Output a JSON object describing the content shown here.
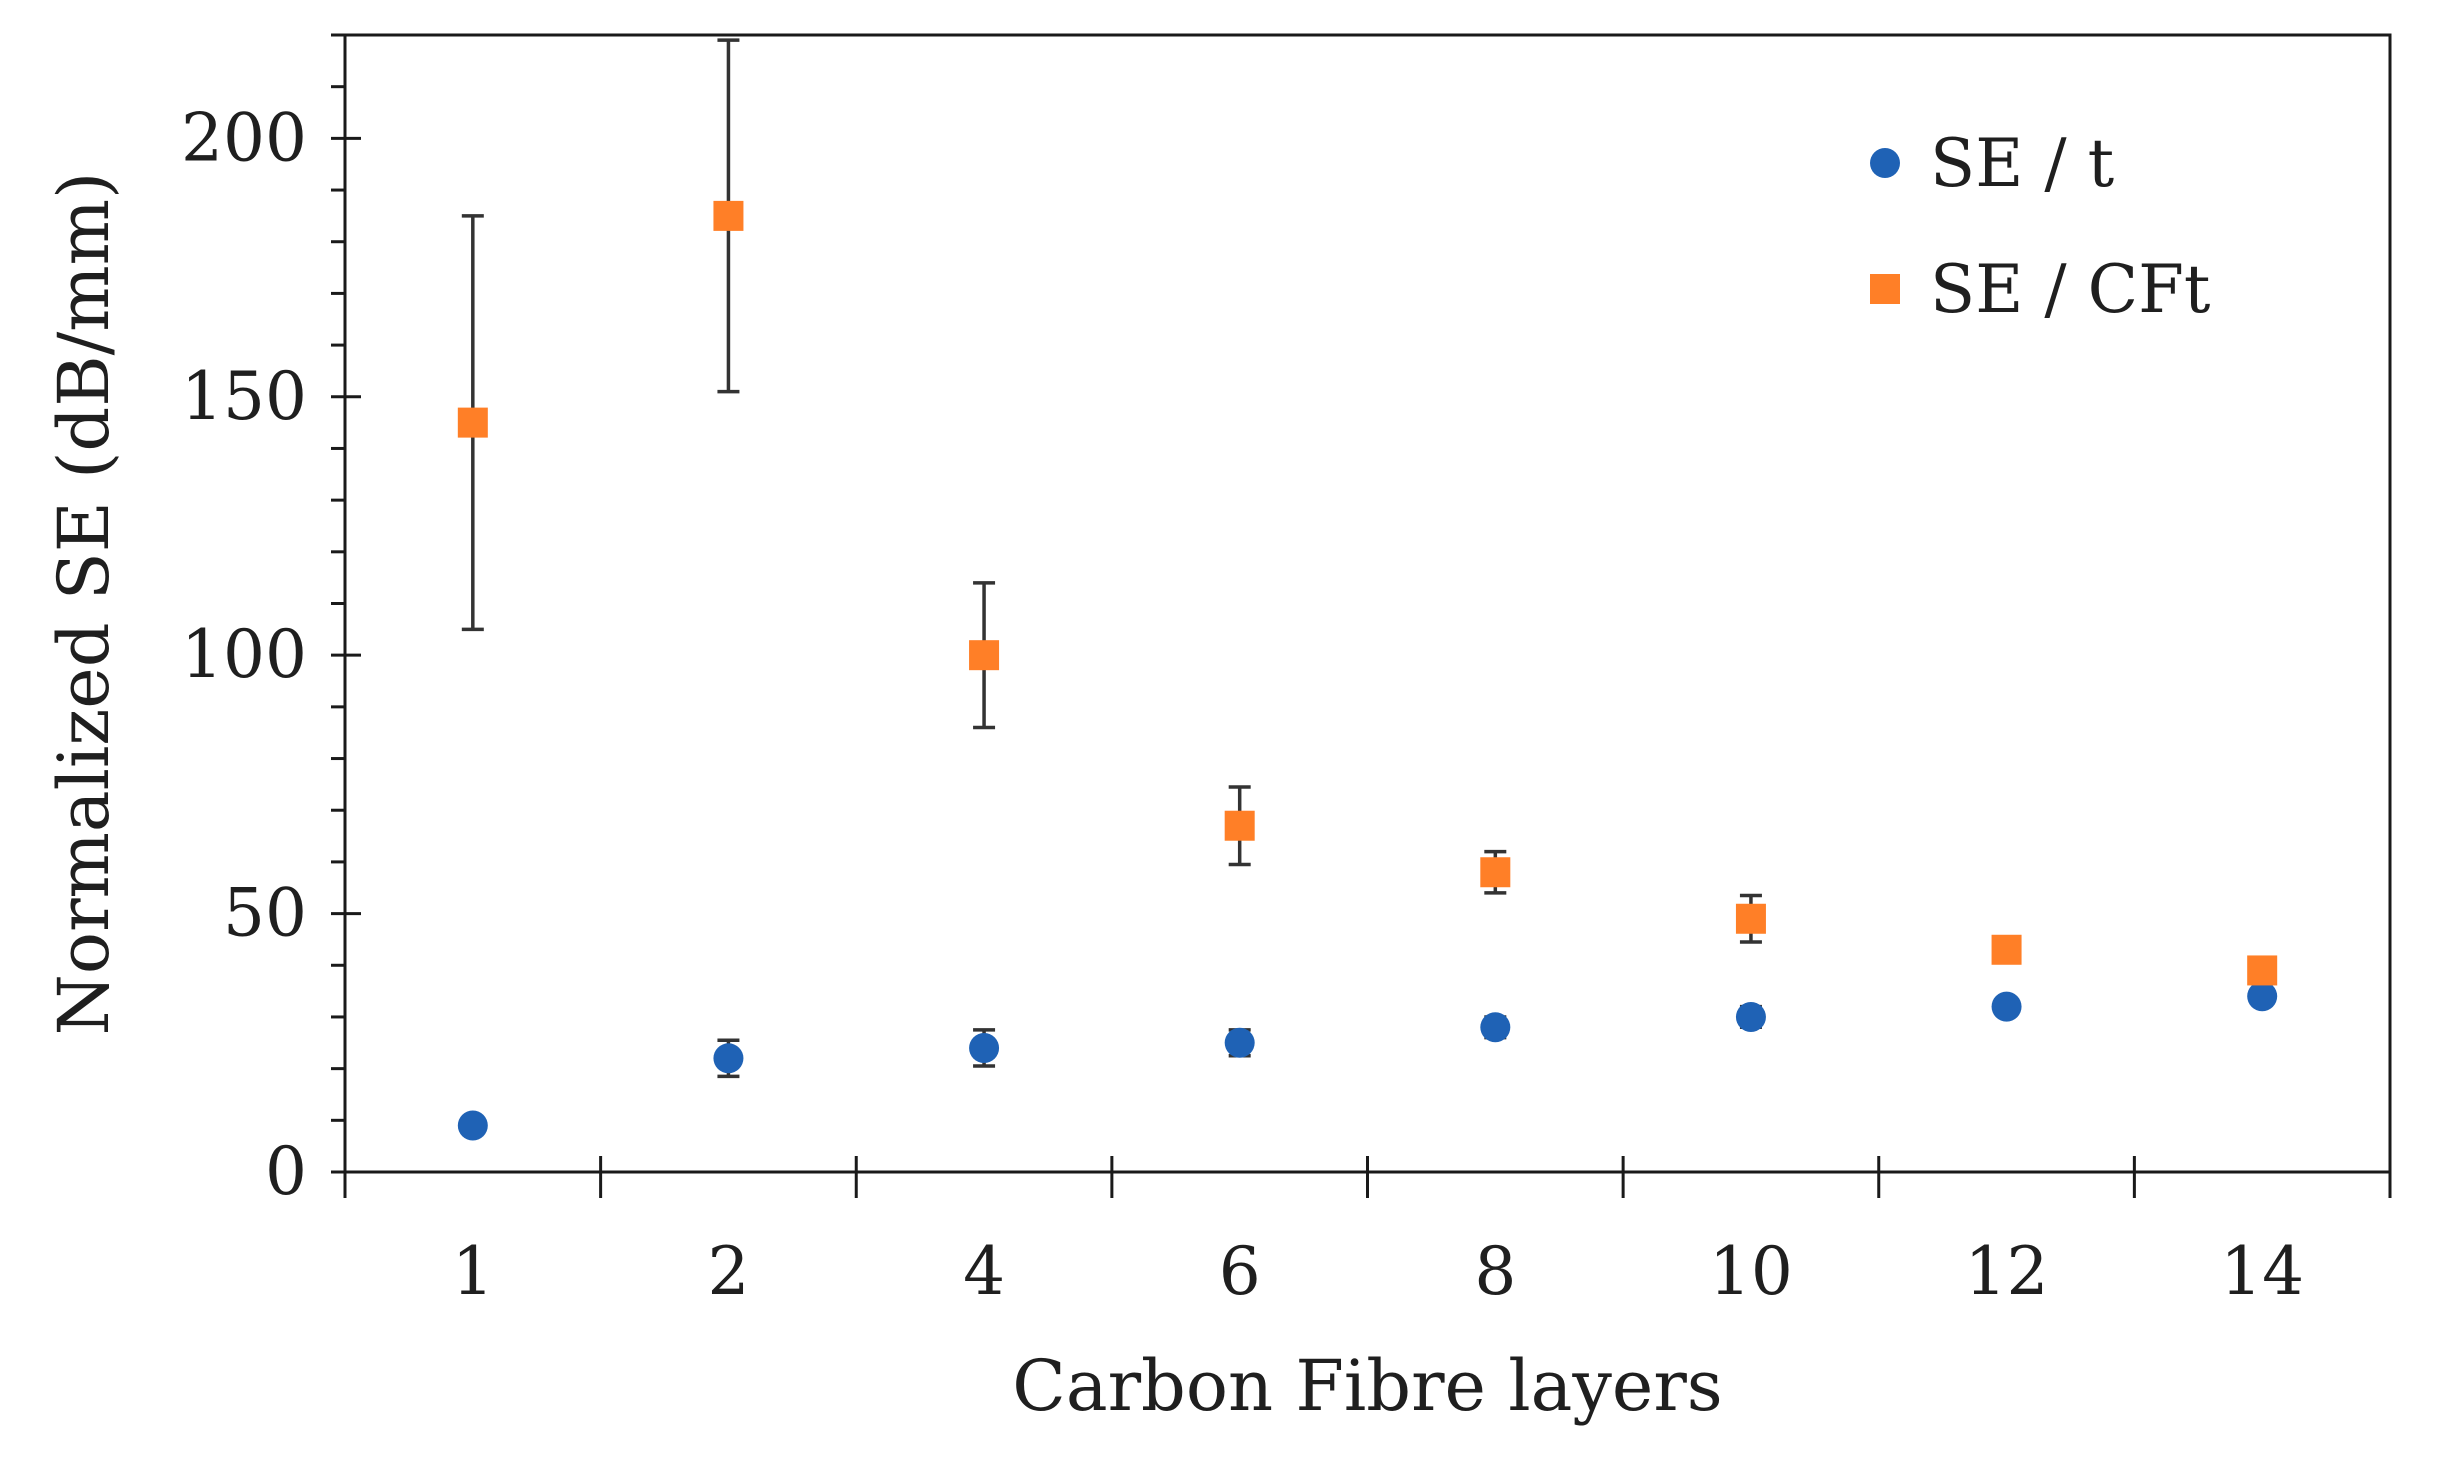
{
  "chart_data": {
    "type": "scatter",
    "title": "",
    "xlabel": "Carbon Fibre layers",
    "ylabel": "Normalized SE (dB/mm)",
    "categories": [
      "1",
      "2",
      "4",
      "6",
      "8",
      "10",
      "12",
      "14"
    ],
    "ylim": [
      0,
      220
    ],
    "yticks": [
      0,
      50,
      100,
      150,
      200
    ],
    "grid": false,
    "legend_position": "top-right",
    "series": [
      {
        "name": "SE / t",
        "marker": "circle",
        "color": "#1f62b5",
        "values": [
          9,
          22,
          24,
          25,
          28,
          30,
          32,
          34
        ],
        "errors": [
          1.5,
          3.5,
          3.5,
          2.5,
          2,
          2,
          1.5,
          1.5
        ]
      },
      {
        "name": "SE / CFt",
        "marker": "square",
        "color": "#ff7f27",
        "values": [
          145,
          185,
          100,
          67,
          58,
          49,
          43,
          39
        ],
        "errors": [
          40,
          34,
          14,
          7.5,
          4,
          4.5,
          2.5,
          1.5
        ]
      }
    ]
  }
}
